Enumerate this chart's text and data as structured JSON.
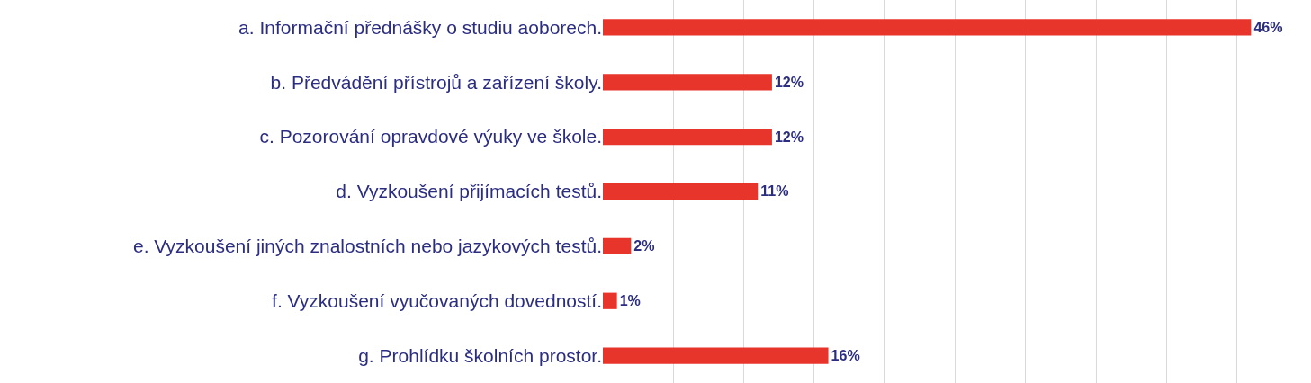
{
  "chart_data": {
    "type": "bar",
    "orientation": "horizontal",
    "categories": [
      "a. Informační přednášky o studiu aoborech.",
      "b. Předvádění přístrojů a zařízení školy.",
      "c. Pozorování opravdové výuky ve škole.",
      "d. Vyzkoušení přijímacích testů.",
      "e. Vyzkoušení jiných znalostních nebo jazykových testů.",
      "f. Vyzkoušení vyučovaných dovedností.",
      "g. Prohlídku školních prostor."
    ],
    "values": [
      46,
      12,
      12,
      11,
      2,
      1,
      16
    ],
    "value_labels": [
      "46%",
      "12%",
      "12%",
      "11%",
      "2%",
      "1%",
      "16%"
    ],
    "color": "#e8352c",
    "xlim": [
      0,
      50
    ],
    "tick_labels": "y",
    "grid": "x",
    "legend": false
  }
}
